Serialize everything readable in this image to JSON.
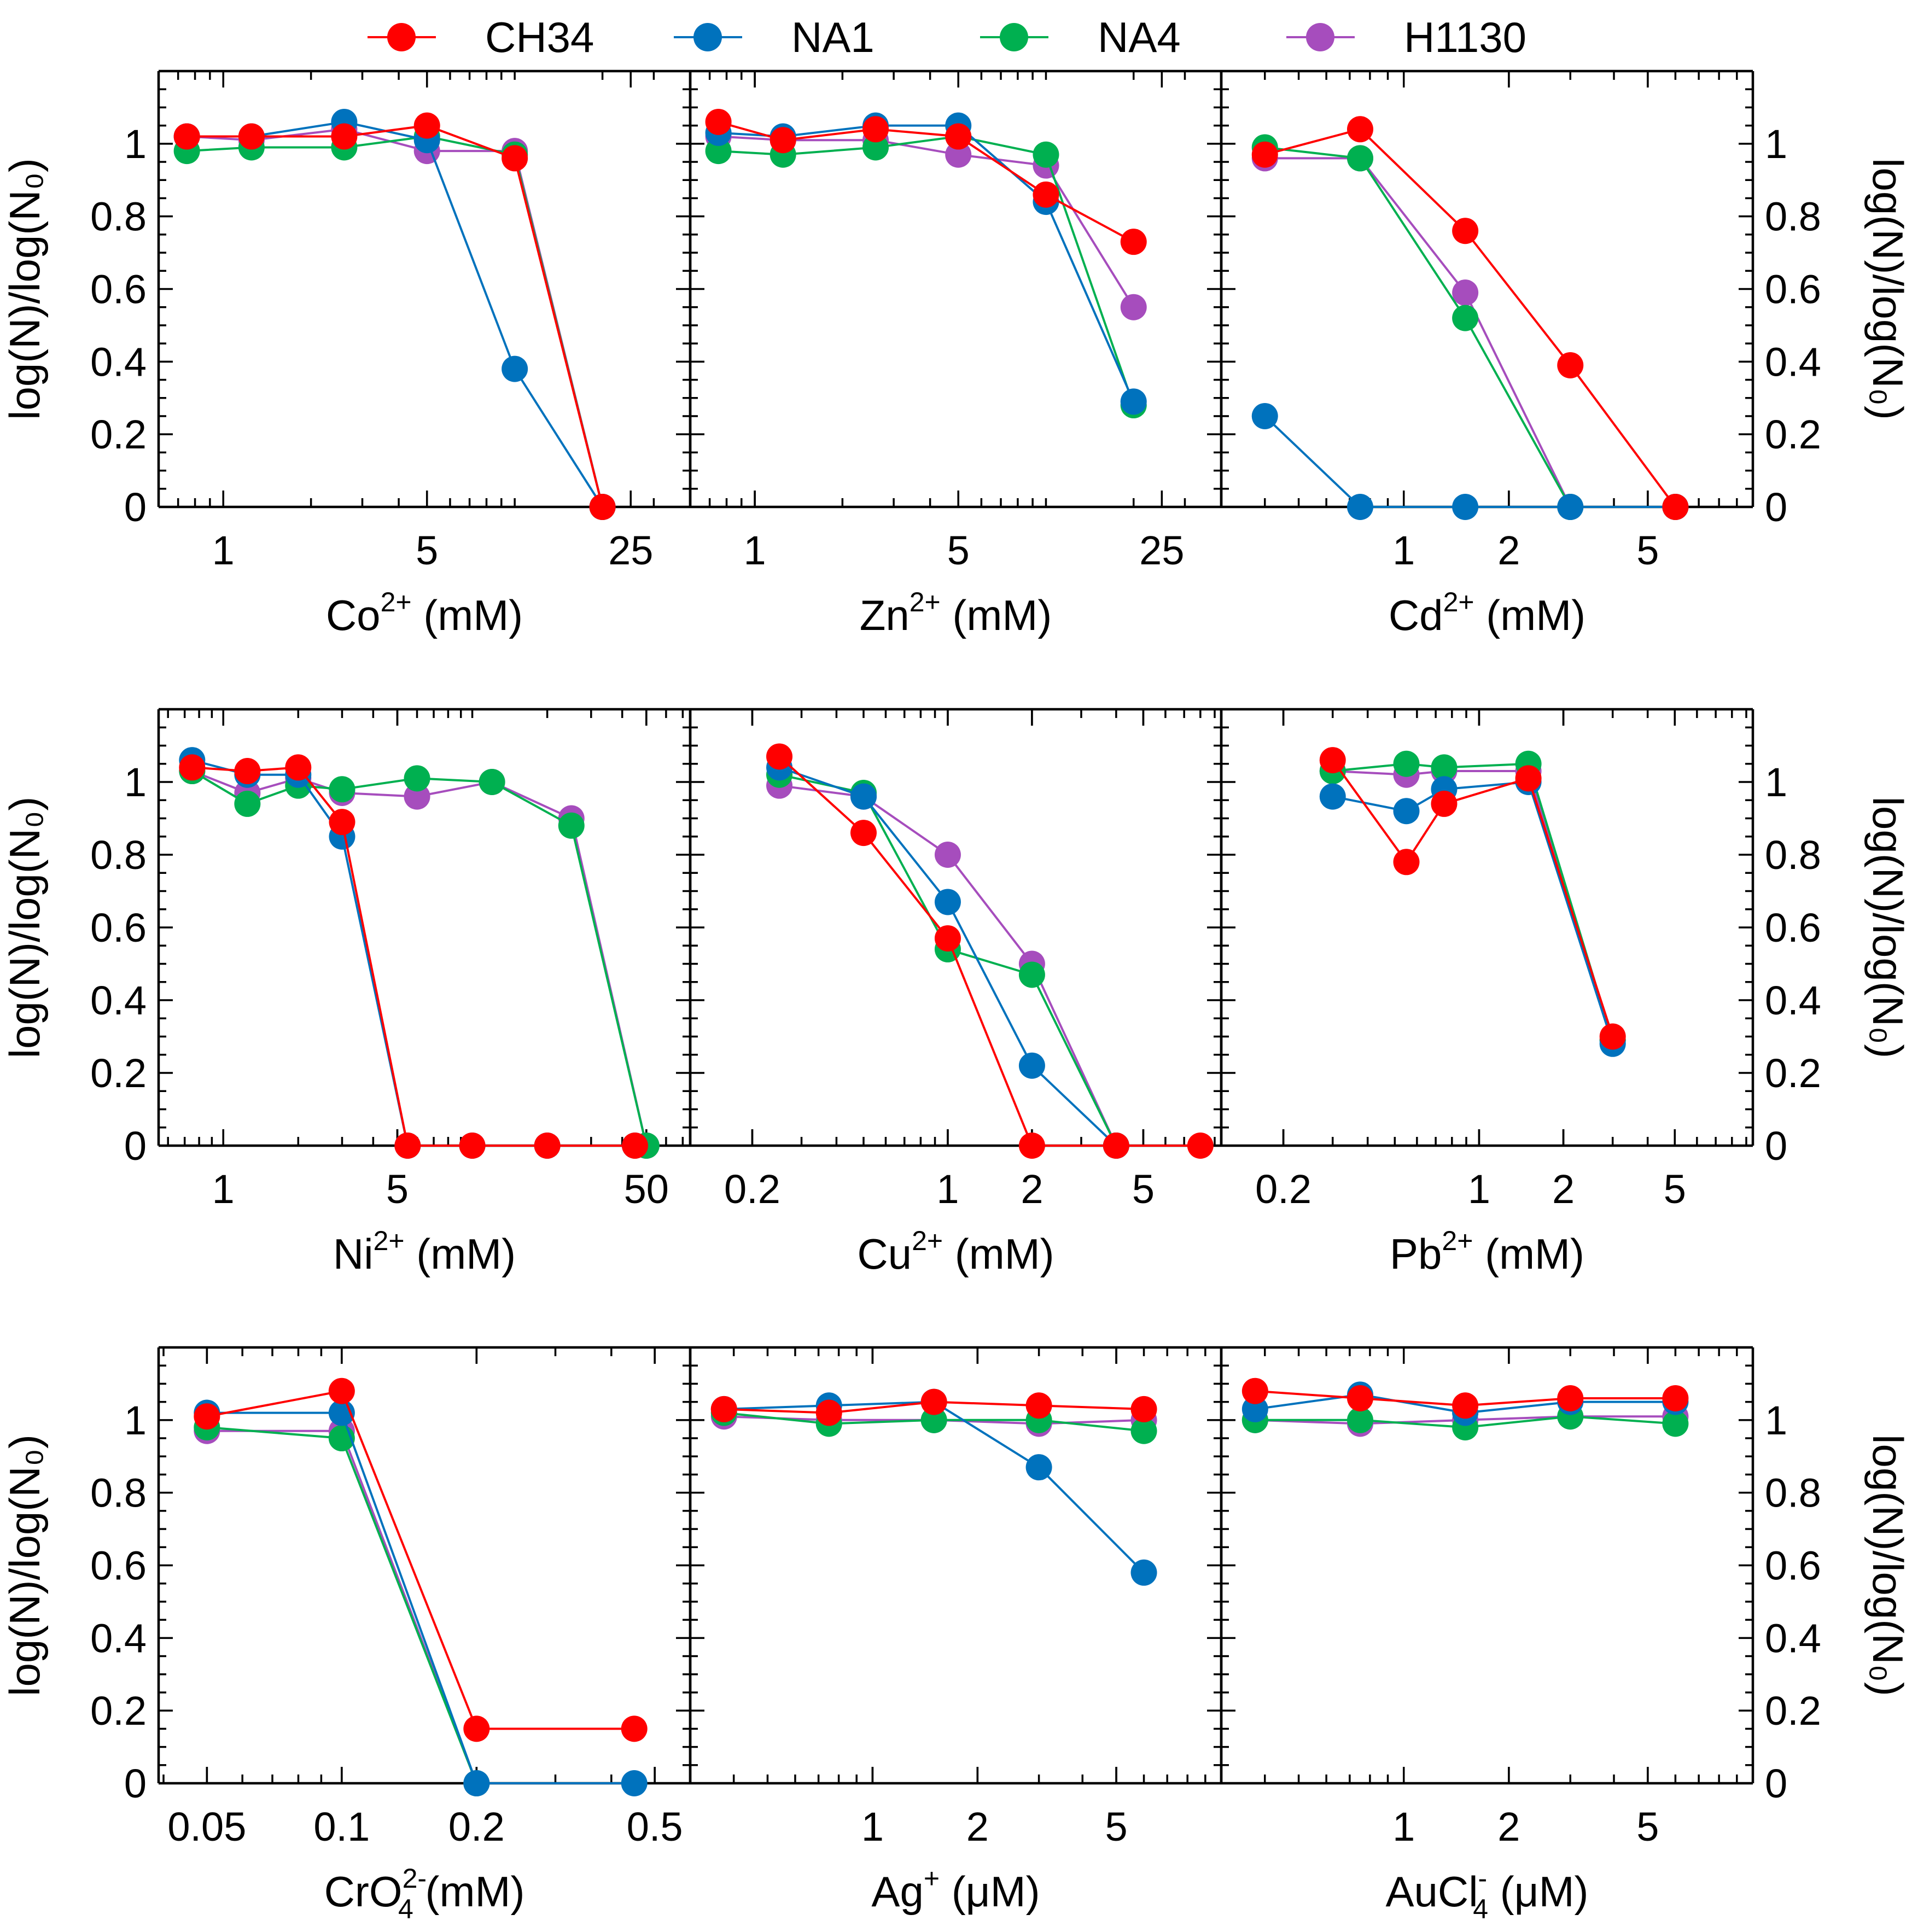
{
  "chart_data": {
    "type": "line",
    "legend": {
      "position": "top-center",
      "entries": [
        {
          "name": "CH34",
          "color": "#ff0000"
        },
        {
          "name": "NA1",
          "color": "#0072bd"
        },
        {
          "name": "NA4",
          "color": "#00b050"
        },
        {
          "name": "H1130",
          "color": "#a64dbd"
        }
      ]
    },
    "y_axis": {
      "label_left": "log(N)/log(N₀)",
      "label_right": "log(N)/log(N₀)",
      "ylim": [
        0,
        1.2
      ],
      "ticks": [
        "0",
        "0.2",
        "0.4",
        "0.6",
        "0.8",
        "1"
      ]
    },
    "panels": [
      {
        "id": "co",
        "row": 0,
        "col": 0,
        "xlabel": {
          "base": "Co",
          "sup": "2+",
          "sub": "",
          "unit": " (mM)"
        },
        "xscale": "log",
        "xlim": [
          0.6,
          40
        ],
        "xticks": [
          {
            "v": 1,
            "label": "1"
          },
          {
            "v": 5,
            "label": "5"
          },
          {
            "v": 25,
            "label": "25"
          }
        ],
        "series": [
          {
            "name": "H1130",
            "x": [
              0.75,
              1.25,
              2.6,
              5.0,
              10.0,
              20.0
            ],
            "y": [
              1.02,
              1.01,
              1.04,
              0.98,
              0.98,
              0.0
            ]
          },
          {
            "name": "NA4",
            "x": [
              0.75,
              1.25,
              2.6,
              5.0,
              10.0,
              20.0
            ],
            "y": [
              0.98,
              0.99,
              0.99,
              1.02,
              0.97,
              0.0
            ]
          },
          {
            "name": "NA1",
            "x": [
              0.75,
              1.25,
              2.6,
              5.0,
              10.0,
              20.0
            ],
            "y": [
              1.02,
              1.02,
              1.06,
              1.01,
              0.38,
              0.0
            ]
          },
          {
            "name": "CH34",
            "x": [
              0.75,
              1.25,
              2.6,
              5.0,
              10.0,
              20.0
            ],
            "y": [
              1.02,
              1.02,
              1.02,
              1.05,
              0.96,
              0.0
            ]
          }
        ]
      },
      {
        "id": "zn",
        "row": 0,
        "col": 1,
        "xlabel": {
          "base": "Zn",
          "sup": "2+",
          "sub": "",
          "unit": " (mM)"
        },
        "xscale": "log",
        "xlim": [
          0.6,
          40
        ],
        "xticks": [
          {
            "v": 1,
            "label": "1"
          },
          {
            "v": 5,
            "label": "5"
          },
          {
            "v": 25,
            "label": "25"
          }
        ],
        "series": [
          {
            "name": "H1130",
            "x": [
              0.75,
              1.25,
              2.6,
              5.0,
              10.0,
              20.0
            ],
            "y": [
              1.02,
              1.01,
              1.01,
              0.97,
              0.94,
              0.55
            ]
          },
          {
            "name": "NA4",
            "x": [
              0.75,
              1.25,
              2.6,
              5.0,
              10.0,
              20.0
            ],
            "y": [
              0.98,
              0.97,
              0.99,
              1.02,
              0.97,
              0.28
            ]
          },
          {
            "name": "NA1",
            "x": [
              0.75,
              1.25,
              2.6,
              5.0,
              10.0,
              20.0
            ],
            "y": [
              1.03,
              1.02,
              1.05,
              1.05,
              0.84,
              0.29
            ]
          },
          {
            "name": "CH34",
            "x": [
              0.75,
              1.25,
              2.6,
              5.0,
              10.0,
              20.0
            ],
            "y": [
              1.06,
              1.01,
              1.04,
              1.02,
              0.86,
              0.73
            ]
          }
        ]
      },
      {
        "id": "cd",
        "row": 0,
        "col": 2,
        "xlabel": {
          "base": "Cd",
          "sup": "2+",
          "sub": "",
          "unit": " (mM)"
        },
        "xscale": "log",
        "xlim": [
          0.3,
          10
        ],
        "xticks": [
          {
            "v": 1,
            "label": "1"
          },
          {
            "v": 2,
            "label": "2"
          },
          {
            "v": 5,
            "label": "5"
          }
        ],
        "series": [
          {
            "name": "H1130",
            "x": [
              0.4,
              0.75,
              1.5,
              3.0,
              6.0
            ],
            "y": [
              0.96,
              0.96,
              0.59,
              0.0,
              0.0
            ]
          },
          {
            "name": "NA4",
            "x": [
              0.4,
              0.75,
              1.5,
              3.0,
              6.0
            ],
            "y": [
              0.99,
              0.96,
              0.52,
              0.0,
              0.0
            ]
          },
          {
            "name": "NA1",
            "x": [
              0.4,
              0.75,
              1.5,
              3.0,
              6.0
            ],
            "y": [
              0.25,
              0.0,
              0.0,
              0.0,
              0.0
            ]
          },
          {
            "name": "CH34",
            "x": [
              0.4,
              0.75,
              1.5,
              3.0,
              6.0
            ],
            "y": [
              0.97,
              1.04,
              0.76,
              0.39,
              0.0
            ]
          }
        ]
      },
      {
        "id": "ni",
        "row": 1,
        "col": 0,
        "xlabel": {
          "base": "Ni",
          "sup": "2+",
          "sub": "",
          "unit": " (mM)"
        },
        "xscale": "log",
        "xlim": [
          0.55,
          75
        ],
        "xticks": [
          {
            "v": 1,
            "label": "1"
          },
          {
            "v": 5,
            "label": "5"
          },
          {
            "v": 50,
            "label": "50"
          }
        ],
        "series": [
          {
            "name": "H1130",
            "x": [
              0.75,
              1.25,
              2.0,
              3.0,
              6.0,
              12.0,
              25.0,
              50.0
            ],
            "y": [
              1.03,
              0.97,
              1.01,
              0.97,
              0.96,
              1.0,
              0.9,
              0.0
            ]
          },
          {
            "name": "NA4",
            "x": [
              0.75,
              1.25,
              2.0,
              3.0,
              6.0,
              12.0,
              25.0,
              50.0
            ],
            "y": [
              1.03,
              0.94,
              0.99,
              0.98,
              1.01,
              1.0,
              0.88,
              0.0
            ]
          },
          {
            "name": "NA1",
            "x": [
              0.75,
              1.25,
              2.0,
              3.0,
              5.5,
              10.0,
              20.0,
              45.0
            ],
            "y": [
              1.06,
              1.02,
              1.02,
              0.85,
              0.0,
              0.0,
              0.0,
              0.0
            ]
          },
          {
            "name": "CH34",
            "x": [
              0.75,
              1.25,
              2.0,
              3.0,
              5.5,
              10.0,
              20.0,
              45.0
            ],
            "y": [
              1.04,
              1.03,
              1.04,
              0.89,
              0.0,
              0.0,
              0.0,
              0.0
            ]
          }
        ]
      },
      {
        "id": "cu",
        "row": 1,
        "col": 1,
        "xlabel": {
          "base": "Cu",
          "sup": "2+",
          "sub": "",
          "unit": " (mM)"
        },
        "xscale": "log",
        "xlim": [
          0.12,
          9.5
        ],
        "xticks": [
          {
            "v": 0.2,
            "label": "0.2"
          },
          {
            "v": 1,
            "label": "1"
          },
          {
            "v": 2,
            "label": "2"
          },
          {
            "v": 5,
            "label": "5"
          }
        ],
        "series": [
          {
            "name": "H1130",
            "x": [
              0.25,
              0.5,
              1.0,
              2.0,
              4.0
            ],
            "y": [
              0.99,
              0.96,
              0.8,
              0.5,
              0.0
            ]
          },
          {
            "name": "NA4",
            "x": [
              0.25,
              0.5,
              1.0,
              2.0,
              4.0
            ],
            "y": [
              1.02,
              0.97,
              0.54,
              0.47,
              0.0
            ]
          },
          {
            "name": "NA1",
            "x": [
              0.25,
              0.5,
              1.0,
              2.0,
              4.0
            ],
            "y": [
              1.04,
              0.96,
              0.67,
              0.22,
              0.0
            ]
          },
          {
            "name": "CH34",
            "x": [
              0.25,
              0.5,
              1.0,
              2.0,
              4.0,
              8.0
            ],
            "y": [
              1.07,
              0.86,
              0.57,
              0.0,
              0.0,
              0.0
            ]
          }
        ]
      },
      {
        "id": "pb",
        "row": 1,
        "col": 2,
        "xlabel": {
          "base": "Pb",
          "sup": "2+",
          "sub": "",
          "unit": " (mM)"
        },
        "xscale": "log",
        "xlim": [
          0.12,
          9.5
        ],
        "xticks": [
          {
            "v": 0.2,
            "label": "0.2"
          },
          {
            "v": 1,
            "label": "1"
          },
          {
            "v": 2,
            "label": "2"
          },
          {
            "v": 5,
            "label": "5"
          }
        ],
        "series": [
          {
            "name": "H1130",
            "x": [
              0.3,
              0.55,
              0.75,
              1.5,
              3.0
            ],
            "y": [
              1.03,
              1.02,
              1.03,
              1.03,
              0.29
            ]
          },
          {
            "name": "NA4",
            "x": [
              0.3,
              0.55,
              0.75,
              1.5,
              3.0
            ],
            "y": [
              1.03,
              1.05,
              1.04,
              1.05,
              0.29
            ]
          },
          {
            "name": "NA1",
            "x": [
              0.3,
              0.55,
              0.75,
              1.5,
              3.0
            ],
            "y": [
              0.96,
              0.92,
              0.98,
              1.0,
              0.28
            ]
          },
          {
            "name": "CH34",
            "x": [
              0.3,
              0.55,
              0.75,
              1.5,
              3.0
            ],
            "y": [
              1.06,
              0.78,
              0.94,
              1.01,
              0.3
            ]
          }
        ]
      },
      {
        "id": "cro4",
        "row": 2,
        "col": 0,
        "xlabel": {
          "base": "CrO",
          "sup": "2-",
          "sub": "4",
          "unit": " (mM)"
        },
        "xscale": "log",
        "xlim": [
          0.039,
          0.6
        ],
        "xticks": [
          {
            "v": 0.05,
            "label": "0.05"
          },
          {
            "v": 0.1,
            "label": "0.1"
          },
          {
            "v": 0.2,
            "label": "0.2"
          },
          {
            "v": 0.5,
            "label": "0.5"
          }
        ],
        "series": [
          {
            "name": "H1130",
            "x": [
              0.05,
              0.1,
              0.2
            ],
            "y": [
              0.97,
              0.97,
              0.0
            ]
          },
          {
            "name": "NA4",
            "x": [
              0.05,
              0.1,
              0.2
            ],
            "y": [
              0.98,
              0.95,
              0.0
            ]
          },
          {
            "name": "NA1",
            "x": [
              0.05,
              0.1,
              0.2,
              0.45
            ],
            "y": [
              1.02,
              1.02,
              0.0,
              0.0
            ]
          },
          {
            "name": "CH34",
            "x": [
              0.05,
              0.1,
              0.2,
              0.45
            ],
            "y": [
              1.01,
              1.08,
              0.15,
              0.15
            ]
          }
        ]
      },
      {
        "id": "ag",
        "row": 2,
        "col": 1,
        "xlabel": {
          "base": "Ag",
          "sup": "+",
          "sub": "",
          "unit": " (μM)"
        },
        "xscale": "log",
        "xlim": [
          0.3,
          10
        ],
        "xticks": [
          {
            "v": 1,
            "label": "1"
          },
          {
            "v": 2,
            "label": "2"
          },
          {
            "v": 5,
            "label": "5"
          }
        ],
        "series": [
          {
            "name": "H1130",
            "x": [
              0.375,
              0.75,
              1.5,
              3.0,
              6.0
            ],
            "y": [
              1.01,
              1.0,
              1.0,
              0.99,
              1.0
            ]
          },
          {
            "name": "NA4",
            "x": [
              0.375,
              0.75,
              1.5,
              3.0,
              6.0
            ],
            "y": [
              1.02,
              0.99,
              1.0,
              1.0,
              0.97
            ]
          },
          {
            "name": "NA1",
            "x": [
              0.375,
              0.75,
              1.5,
              3.0,
              6.0
            ],
            "y": [
              1.03,
              1.04,
              1.05,
              0.87,
              0.58
            ]
          },
          {
            "name": "CH34",
            "x": [
              0.375,
              0.75,
              1.5,
              3.0,
              6.0
            ],
            "y": [
              1.03,
              1.02,
              1.05,
              1.04,
              1.03
            ]
          }
        ]
      },
      {
        "id": "aucl4",
        "row": 2,
        "col": 2,
        "xlabel": {
          "base": "AuCl",
          "sup": "-",
          "sub": "4",
          "unit": " (μM)"
        },
        "xscale": "log",
        "xlim": [
          0.3,
          10
        ],
        "xticks": [
          {
            "v": 1,
            "label": "1"
          },
          {
            "v": 2,
            "label": "2"
          },
          {
            "v": 5,
            "label": "5"
          }
        ],
        "series": [
          {
            "name": "H1130",
            "x": [
              0.375,
              0.75,
              1.5,
              3.0,
              6.0
            ],
            "y": [
              1.0,
              0.99,
              1.0,
              1.01,
              1.01
            ]
          },
          {
            "name": "NA4",
            "x": [
              0.375,
              0.75,
              1.5,
              3.0,
              6.0
            ],
            "y": [
              1.0,
              1.0,
              0.98,
              1.01,
              0.99
            ]
          },
          {
            "name": "NA1",
            "x": [
              0.375,
              0.75,
              1.5,
              3.0,
              6.0
            ],
            "y": [
              1.03,
              1.07,
              1.02,
              1.05,
              1.05
            ]
          },
          {
            "name": "CH34",
            "x": [
              0.375,
              0.75,
              1.5,
              3.0,
              6.0
            ],
            "y": [
              1.08,
              1.06,
              1.04,
              1.06,
              1.06
            ]
          }
        ]
      }
    ]
  }
}
